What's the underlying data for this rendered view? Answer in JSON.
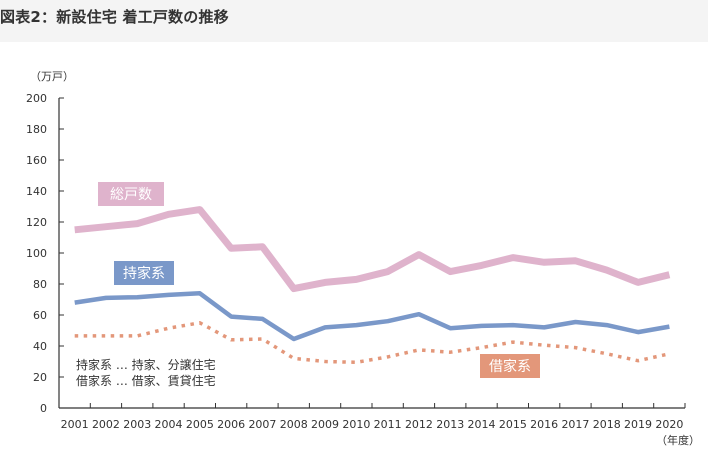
{
  "header": {
    "title": "図表2：新設住宅 着工戸数の推移"
  },
  "chart_data": {
    "type": "line",
    "title": "図表2：新設住宅 着工戸数の推移",
    "xlabel": "（年度）",
    "ylabel": "（万戸）",
    "ylim": [
      0,
      200
    ],
    "yticks": [
      0,
      20,
      40,
      60,
      80,
      100,
      120,
      140,
      160,
      180,
      200
    ],
    "x": [
      "2001",
      "2002",
      "2003",
      "2004",
      "2005",
      "2006",
      "2007",
      "2008",
      "2009",
      "2010",
      "2011",
      "2012",
      "2013",
      "2014",
      "2015",
      "2016",
      "2017",
      "2018",
      "2019",
      "2020"
    ],
    "grid": false,
    "series": [
      {
        "name": "総戸数",
        "color": "#dfb3cc",
        "style": "solid-thick",
        "values": [
          115,
          117,
          119,
          125,
          128,
          103,
          104,
          77,
          81,
          83,
          88,
          99,
          88,
          92,
          97,
          94,
          95,
          89,
          81,
          86
        ]
      },
      {
        "name": "持家系",
        "color": "#7a98c9",
        "style": "solid",
        "values": [
          68,
          71,
          71.5,
          73,
          74,
          59,
          57.5,
          44.5,
          52,
          53.5,
          56,
          60.5,
          51.5,
          53,
          53.5,
          52,
          55.5,
          53.5,
          49,
          52.5
        ]
      },
      {
        "name": "借家系",
        "color": "#e3977a",
        "style": "dotted",
        "values": [
          46.5,
          46.5,
          46.5,
          51.5,
          55,
          44,
          44.5,
          32,
          30,
          29.5,
          33,
          37.5,
          36,
          39,
          42.5,
          40.5,
          39,
          35,
          30.5,
          35
        ]
      }
    ],
    "annotations": [
      "持家系 … 持家、分譲住宅",
      "借家系 … 借家、賃貸住宅"
    ],
    "legend": "inline-labels"
  }
}
